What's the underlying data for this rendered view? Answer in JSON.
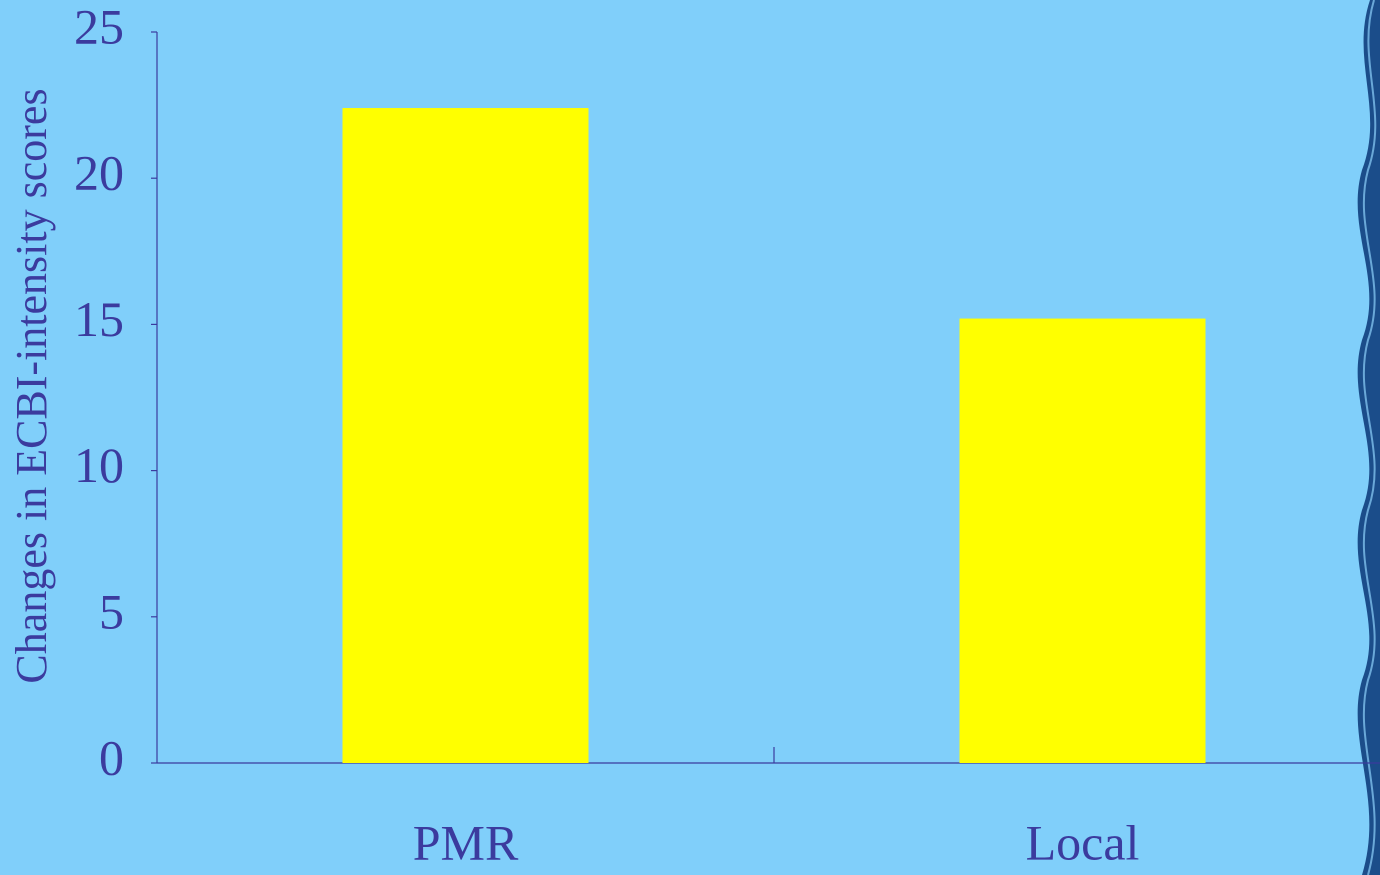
{
  "chart_data": {
    "type": "bar",
    "y_label": "Changes in ECBI-intensity scores",
    "categories": [
      "PMR",
      "Local"
    ],
    "values": [
      22.4,
      15.2
    ],
    "color": "#ffff00",
    "ylim": [
      0,
      25
    ],
    "yticks": [
      0,
      5,
      10,
      15,
      20,
      25
    ]
  }
}
